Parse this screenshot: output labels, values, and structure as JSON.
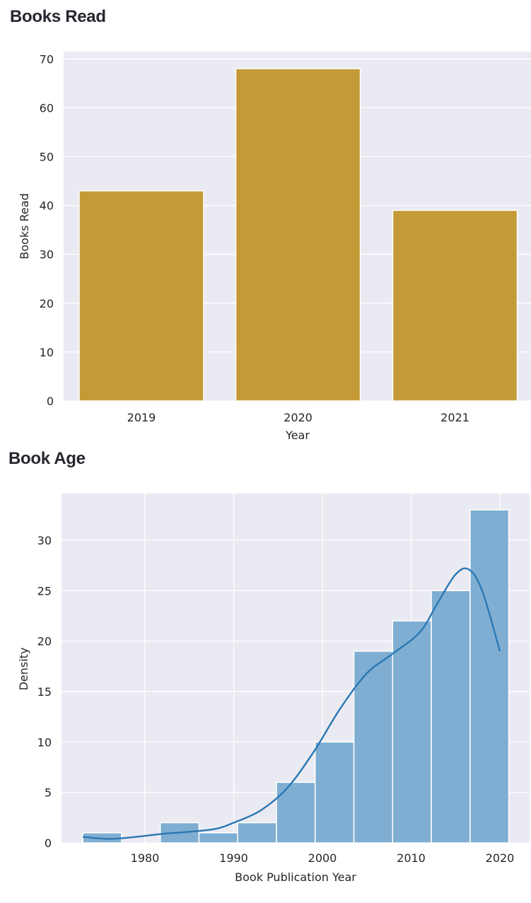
{
  "sections": [
    {
      "title": "Books Read"
    },
    {
      "title": "Book Age"
    }
  ],
  "colors": {
    "plot_bg": "#eaeaf2",
    "grid": "#ffffff",
    "bar_gold": "#c49a36",
    "hist_fill": "#7faed2",
    "kde_line": "#2a78b5"
  },
  "chart_data": [
    {
      "type": "bar",
      "title": "Books Read",
      "categories": [
        "2019",
        "2020",
        "2021"
      ],
      "values": [
        43,
        68,
        39
      ],
      "xlabel": "Year",
      "ylabel": "Books Read",
      "ylim": [
        0,
        71.5
      ],
      "yticks": [
        0,
        10,
        20,
        30,
        40,
        50,
        60,
        70
      ],
      "grid": true,
      "color": "#c49a36"
    },
    {
      "type": "bar",
      "subtype": "histogram_with_kde",
      "title": "Book Age",
      "bin_edges": [
        1973.0,
        1977.36,
        1981.73,
        1986.09,
        1990.45,
        1994.82,
        1999.18,
        2003.55,
        2007.91,
        2012.27,
        2016.64,
        2021.0
      ],
      "values": [
        1,
        0,
        2,
        1,
        2,
        6,
        10,
        19,
        22,
        25,
        33
      ],
      "kde": {
        "x": [
          1973.0,
          1976,
          1979,
          1982,
          1985,
          1988,
          1990,
          1993,
          1996,
          1999,
          2002,
          2005,
          2008,
          2011,
          2013,
          2015,
          2016.5,
          2018,
          2020
        ],
        "y": [
          0.6,
          0.4,
          0.6,
          0.9,
          1.1,
          1.4,
          2.0,
          3.2,
          5.4,
          9.0,
          13.3,
          16.8,
          18.8,
          20.9,
          23.8,
          26.6,
          27.1,
          25.0,
          19.0
        ]
      },
      "xlabel": "Book Publication Year",
      "ylabel": "Density",
      "xlim": [
        1970.6,
        2024.0
      ],
      "ylim": [
        0,
        34.7
      ],
      "xticks": [
        1980,
        1990,
        2000,
        2010,
        2020
      ],
      "yticks": [
        0,
        5,
        10,
        15,
        20,
        25,
        30
      ],
      "grid": true,
      "color": "#7faed2",
      "line_color": "#2a78b5"
    }
  ]
}
